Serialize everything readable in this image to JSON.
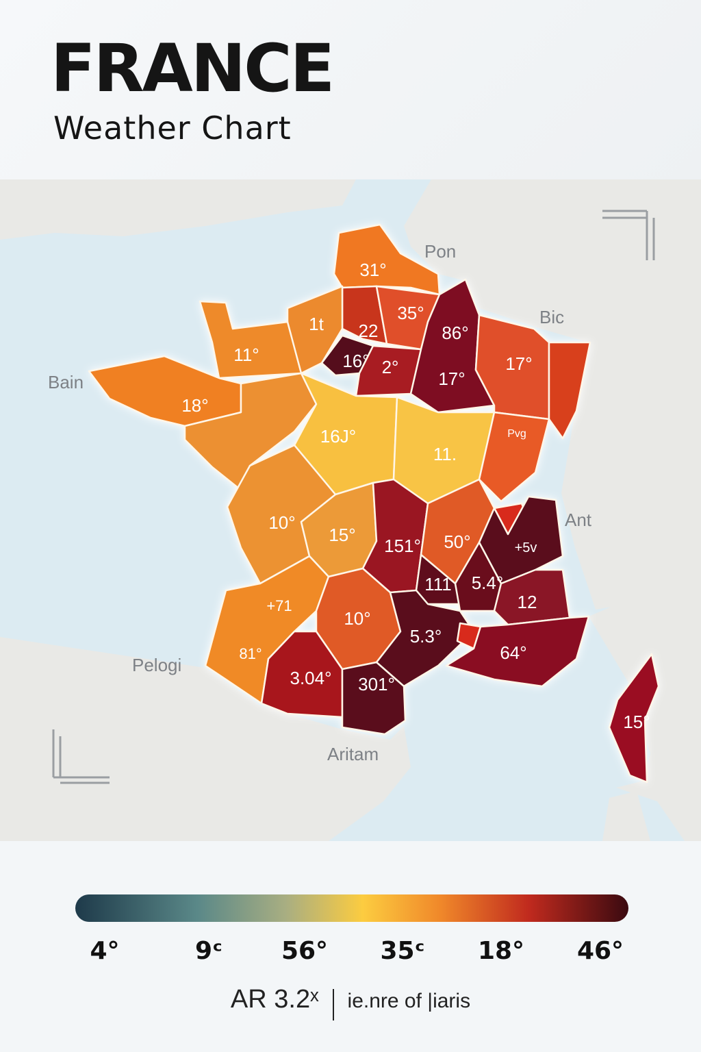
{
  "header": {
    "title": "FRANCE",
    "subtitle": "Weather Chart"
  },
  "map": {
    "sea_color": "#dcebf2",
    "land_color": "#e9e9e6",
    "place_labels": [
      "Pon",
      "Bic",
      "Bain",
      "Ant",
      "Pelogi",
      "Aritam"
    ],
    "regions": [
      {
        "label": "31°",
        "color": "#f07820"
      },
      {
        "label": "22",
        "color": "#c8361f"
      },
      {
        "label": "35°",
        "color": "#e0502a"
      },
      {
        "label": "1t",
        "color": "#ec8a2e"
      },
      {
        "label": "11°",
        "color": "#ee8a2c"
      },
      {
        "label": "18°",
        "color": "#f08020"
      },
      {
        "label": "16°",
        "color": "#55101a"
      },
      {
        "label": "2°",
        "color": "#a81a24"
      },
      {
        "label": "86°",
        "color": "#7e1020"
      },
      {
        "label": "17°",
        "color": "#7e1020"
      },
      {
        "label": "17°",
        "color": "#e0502a"
      },
      {
        "label": "",
        "color": "#d8401e"
      },
      {
        "label": "",
        "color": "#ec9030"
      },
      {
        "label": "16J°",
        "color": "#f8c040"
      },
      {
        "label": "11.",
        "color": "#f8c445"
      },
      {
        "label": "Pvg",
        "color": "#e85a28"
      },
      {
        "label": "10°",
        "color": "#ec9232"
      },
      {
        "label": "15°",
        "color": "#ec9a38"
      },
      {
        "label": "151°",
        "color": "#9a1420"
      },
      {
        "label": "50°",
        "color": "#e05a28"
      },
      {
        "label": "",
        "color": "#d82a1a"
      },
      {
        "label": "+5v",
        "color": "#5a0e1c"
      },
      {
        "label": "111",
        "color": "#5e0f1c"
      },
      {
        "label": "5.4°",
        "color": "#6a0f1c"
      },
      {
        "label": "12",
        "color": "#8a1425"
      },
      {
        "label": "+71",
        "color": "#f08a28"
      },
      {
        "label": "81°",
        "color": "#f08a28"
      },
      {
        "label": "10°",
        "color": "#e05a28"
      },
      {
        "label": "3.04°",
        "color": "#a8141e"
      },
      {
        "label": "5.3°",
        "color": "#5a0e1c"
      },
      {
        "label": "301°",
        "color": "#5a0e1c"
      },
      {
        "label": "",
        "color": "#d82a1a"
      },
      {
        "label": "64°",
        "color": "#8a1020"
      },
      {
        "label": "15°",
        "color": "#9a1020"
      }
    ]
  },
  "legend": {
    "gradient_colors": [
      "#1e3a4a",
      "#5a8888",
      "#a8ae82",
      "#fccc40",
      "#f0882a",
      "#c02a1e",
      "#3a0a10"
    ],
    "ticks": [
      "4°",
      "9ᶜ",
      "56°",
      "35ᶜ",
      "18°",
      "46°"
    ],
    "footer_left": "AR 3.2ˣ",
    "footer_right": "ie.nre of |iaris"
  }
}
